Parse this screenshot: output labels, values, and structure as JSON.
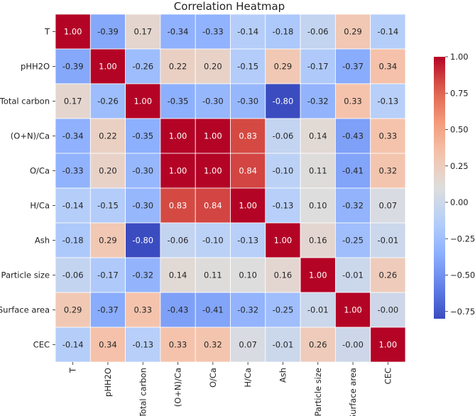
{
  "chart_data": {
    "type": "heatmap",
    "title": "Correlation Heatmap",
    "xlabel": "",
    "ylabel": "",
    "labels": [
      "T",
      "pHH2O",
      "Total carbon",
      "(O+N)/Ca",
      "O/Ca",
      "H/Ca",
      "Ash",
      "Particle size",
      "Surface area",
      "CEC"
    ],
    "display": [
      [
        "1.00",
        "-0.39",
        "0.17",
        "-0.34",
        "-0.33",
        "-0.14",
        "-0.18",
        "-0.06",
        "0.29",
        "-0.14"
      ],
      [
        "-0.39",
        "1.00",
        "-0.26",
        "0.22",
        "0.20",
        "-0.15",
        "0.29",
        "-0.17",
        "-0.37",
        "0.34"
      ],
      [
        "0.17",
        "-0.26",
        "1.00",
        "-0.35",
        "-0.30",
        "-0.30",
        "-0.80",
        "-0.32",
        "0.33",
        "-0.13"
      ],
      [
        "-0.34",
        "0.22",
        "-0.35",
        "1.00",
        "1.00",
        "0.83",
        "-0.06",
        "0.14",
        "-0.43",
        "0.33"
      ],
      [
        "-0.33",
        "0.20",
        "-0.30",
        "1.00",
        "1.00",
        "0.84",
        "-0.10",
        "0.11",
        "-0.41",
        "0.32"
      ],
      [
        "-0.14",
        "-0.15",
        "-0.30",
        "0.83",
        "0.84",
        "1.00",
        "-0.13",
        "0.10",
        "-0.32",
        "0.07"
      ],
      [
        "-0.18",
        "0.29",
        "-0.80",
        "-0.06",
        "-0.10",
        "-0.13",
        "1.00",
        "0.16",
        "-0.25",
        "-0.01"
      ],
      [
        "-0.06",
        "-0.17",
        "-0.32",
        "0.14",
        "0.11",
        "0.10",
        "0.16",
        "1.00",
        "-0.01",
        "0.26"
      ],
      [
        "0.29",
        "-0.37",
        "0.33",
        "-0.43",
        "-0.41",
        "-0.32",
        "-0.25",
        "-0.01",
        "1.00",
        "-0.00"
      ],
      [
        "-0.14",
        "0.34",
        "-0.13",
        "0.33",
        "0.32",
        "0.07",
        "-0.01",
        "0.26",
        "-0.00",
        "1.00"
      ]
    ],
    "colorbar": {
      "colormap": "coolwarm",
      "vmin": -0.8,
      "vmax": 1.0,
      "ticks": [
        1.0,
        0.75,
        0.5,
        0.25,
        0.0,
        -0.25,
        -0.5,
        -0.75
      ],
      "tick_labels": [
        "1.00",
        "0.75",
        "0.50",
        "0.25",
        "0.00",
        "−0.25",
        "−0.50",
        "−0.75"
      ]
    }
  }
}
